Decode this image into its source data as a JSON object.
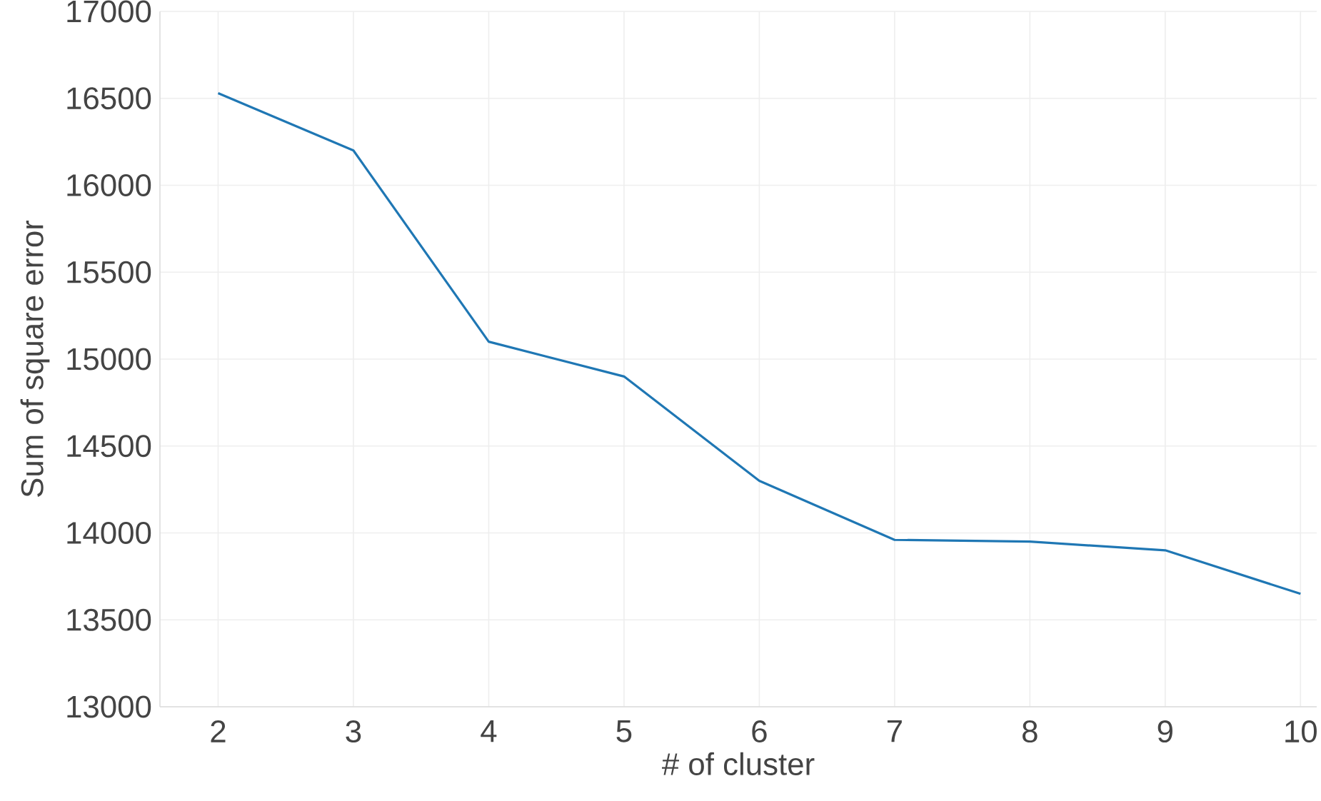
{
  "chart_data": {
    "type": "line",
    "xlabel": "# of cluster",
    "ylabel": "Sum of square error",
    "x": [
      2,
      3,
      4,
      5,
      6,
      7,
      8,
      9,
      10
    ],
    "series": [
      {
        "color": "#1f77b4",
        "values": [
          16530,
          16200,
          15100,
          14900,
          14300,
          13960,
          13950,
          13900,
          13650
        ]
      }
    ],
    "xlim": [
      1.57,
      10.12
    ],
    "ylim": [
      13000,
      17000
    ],
    "xticks": [
      2,
      3,
      4,
      5,
      6,
      7,
      8,
      9,
      10
    ],
    "yticks": [
      13000,
      13500,
      14000,
      14500,
      15000,
      15500,
      16000,
      16500,
      17000
    ],
    "grid": true,
    "marker": "none",
    "line_style": "solid"
  }
}
